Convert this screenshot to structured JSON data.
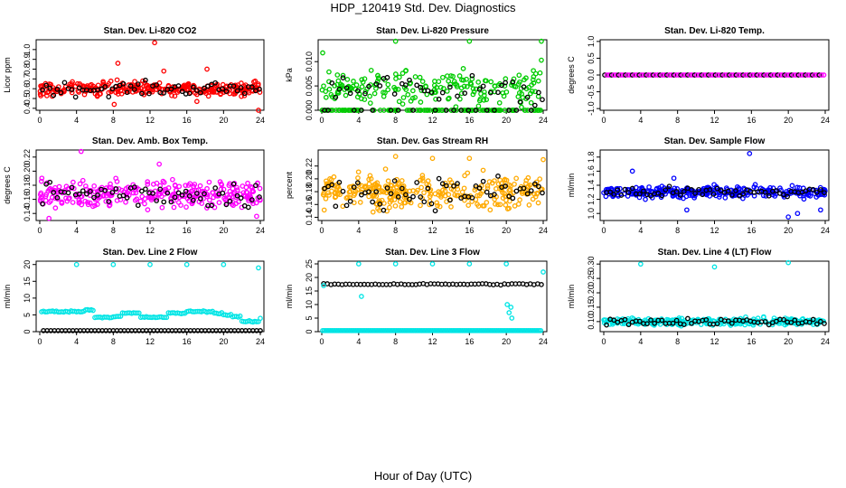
{
  "title": "HDP_120419  Std. Dev. Diagnostics",
  "xlabel": "Hour of Day (UTC)",
  "chart_data": [
    {
      "type": "scatter",
      "title": "Stan. Dev. Li-820 CO2",
      "ylabel": "Licor ppm",
      "color": "#ff0000",
      "ylim": [
        0.38,
        1.1
      ],
      "yticks": [
        "0.4",
        "0.5",
        "0.6",
        "0.7",
        "0.8",
        "0.9",
        "1.0"
      ],
      "ytick_values": [
        0.4,
        0.5,
        0.6,
        0.7,
        0.8,
        0.9,
        1.0
      ],
      "xticks": [
        "0",
        "4",
        "8",
        "12",
        "16",
        "20",
        "24"
      ],
      "xlim": [
        0,
        24
      ],
      "base": 0.6,
      "spread": 0.07,
      "outliers": [
        [
          12.5,
          1.07
        ],
        [
          8.5,
          0.86
        ],
        [
          13.5,
          0.78
        ],
        [
          18.2,
          0.8
        ],
        [
          8.1,
          0.44
        ],
        [
          23.8,
          0.38
        ],
        [
          17.1,
          0.47
        ]
      ]
    },
    {
      "type": "scatter",
      "title": "Stan. Dev. Li-820 Pressure",
      "ylabel": "kPa",
      "color": "#00cc00",
      "ylim": [
        0,
        0.0145
      ],
      "yticks": [
        "0.000",
        "0.005",
        "0.010"
      ],
      "ytick_values": [
        0,
        0.005,
        0.01
      ],
      "xticks": [
        "0",
        "4",
        "8",
        "12",
        "16",
        "20",
        "24"
      ],
      "xlim": [
        0,
        24
      ],
      "base": 0.0045,
      "spread": 0.0035,
      "zero_band": true,
      "outliers": [
        [
          8,
          0.0142
        ],
        [
          16,
          0.0142
        ],
        [
          23.8,
          0.0142
        ],
        [
          0.1,
          0.0118
        ],
        [
          23.8,
          0.0103
        ]
      ]
    },
    {
      "type": "scatter",
      "title": "Stan. Dev. Li-820 Temp.",
      "ylabel": "degrees C",
      "color": "#ff00ff",
      "ylim": [
        -1.05,
        1.05
      ],
      "yticks": [
        "-1.0",
        "-0.5",
        "0.0",
        "0.5",
        "1.0"
      ],
      "ytick_values": [
        -1,
        -0.5,
        0,
        0.5,
        1
      ],
      "xticks": [
        "0",
        "4",
        "8",
        "12",
        "16",
        "20",
        "24"
      ],
      "xlim": [
        0,
        24
      ],
      "flat": 0.0
    },
    {
      "type": "scatter",
      "title": "Stan. Dev. Amb. Box Temp.",
      "ylabel": "degrees C",
      "color": "#ff00ff",
      "ylim": [
        0.13,
        0.23
      ],
      "yticks": [
        "0.14",
        "0.16",
        "0.18",
        "0.20",
        "0.22"
      ],
      "ytick_values": [
        0.14,
        0.16,
        0.18,
        0.2,
        0.22
      ],
      "xticks": [
        "0",
        "4",
        "8",
        "12",
        "16",
        "20",
        "24"
      ],
      "xlim": [
        0,
        24
      ],
      "base": 0.168,
      "spread": 0.02,
      "outliers": [
        [
          4.5,
          0.228
        ],
        [
          13,
          0.21
        ],
        [
          1,
          0.133
        ],
        [
          23.6,
          0.136
        ]
      ]
    },
    {
      "type": "scatter",
      "title": "Stan. Dev. Gas Stream RH",
      "ylabel": "percent",
      "color": "#ffaa00",
      "ylim": [
        0.135,
        0.245
      ],
      "yticks": [
        "0.14",
        "0.16",
        "0.18",
        "0.20",
        "0.22"
      ],
      "ytick_values": [
        0.14,
        0.16,
        0.18,
        0.2,
        0.22
      ],
      "xticks": [
        "0",
        "4",
        "8",
        "12",
        "16",
        "20",
        "24"
      ],
      "xlim": [
        0,
        24
      ],
      "base": 0.18,
      "spread": 0.025,
      "outliers": [
        [
          8,
          0.235
        ],
        [
          12,
          0.232
        ],
        [
          16,
          0.232
        ],
        [
          24,
          0.23
        ]
      ]
    },
    {
      "type": "scatter",
      "title": "Stan. Dev. Sample Flow",
      "ylabel": "ml/min",
      "color": "#0000ff",
      "ylim": [
        0.9,
        1.9
      ],
      "yticks": [
        "1.0",
        "1.2",
        "1.4",
        "1.6",
        "1.8"
      ],
      "ytick_values": [
        1.0,
        1.2,
        1.4,
        1.6,
        1.8
      ],
      "xticks": [
        "0",
        "4",
        "8",
        "12",
        "16",
        "20",
        "24"
      ],
      "xlim": [
        0,
        24
      ],
      "base": 1.3,
      "spread": 0.08,
      "outliers": [
        [
          15.8,
          1.85
        ],
        [
          3.1,
          1.6
        ],
        [
          7.6,
          1.5
        ],
        [
          20,
          0.95
        ],
        [
          21,
          1.0
        ],
        [
          9,
          1.05
        ],
        [
          23.5,
          1.05
        ]
      ]
    },
    {
      "type": "scatter",
      "title": "Stan. Dev. Line 2 Flow",
      "ylabel": "ml/min",
      "color": "#00e5e5",
      "ylim": [
        0,
        21
      ],
      "yticks": [
        "0",
        "5",
        "10",
        "15",
        "20"
      ],
      "ytick_values": [
        0,
        5,
        10,
        15,
        20
      ],
      "xticks": [
        "0",
        "4",
        "8",
        "12",
        "16",
        "20",
        "24"
      ],
      "xlim": [
        0,
        24
      ],
      "line_values": [
        6,
        6,
        6,
        6,
        6,
        6.5,
        4.3,
        4.3,
        4.5,
        5.5,
        5.5,
        4.3,
        4.3,
        4.3,
        5.5,
        5.5,
        6,
        6,
        6,
        5.5,
        5,
        4.5,
        3,
        3,
        4
      ],
      "black_level": 0.3,
      "outliers": [
        [
          4,
          20
        ],
        [
          8,
          20
        ],
        [
          12,
          20
        ],
        [
          16,
          20
        ],
        [
          20,
          20
        ],
        [
          23.8,
          19
        ]
      ]
    },
    {
      "type": "scatter",
      "title": "Stan. Dev. Line 3 Flow",
      "ylabel": "ml/min",
      "color": "#00e5e5",
      "ylim": [
        0,
        26
      ],
      "yticks": [
        "0",
        "5",
        "10",
        "15",
        "20",
        "25"
      ],
      "ytick_values": [
        0,
        5,
        10,
        15,
        20,
        25
      ],
      "xticks": [
        "0",
        "4",
        "8",
        "12",
        "16",
        "20",
        "24"
      ],
      "xlim": [
        0,
        24
      ],
      "black_level": 17.5,
      "cyan_level": 0.4,
      "outliers": [
        [
          4,
          25
        ],
        [
          8,
          25
        ],
        [
          12,
          25
        ],
        [
          16,
          25
        ],
        [
          20,
          25
        ],
        [
          24,
          22
        ],
        [
          0.2,
          17
        ],
        [
          4.3,
          13
        ],
        [
          20.1,
          10
        ],
        [
          20.3,
          7
        ],
        [
          20.5,
          9
        ],
        [
          20.6,
          5
        ]
      ]
    },
    {
      "type": "scatter",
      "title": "Stan. Dev. Line 4 (LT) Flow",
      "ylabel": "ml/min",
      "color": "#00e5e5",
      "ylim": [
        0.065,
        0.31
      ],
      "yticks": [
        "0.10",
        "0.15",
        "0.20",
        "0.25",
        "0.30"
      ],
      "ytick_values": [
        0.1,
        0.15,
        0.2,
        0.25,
        0.3
      ],
      "xticks": [
        "0",
        "4",
        "8",
        "12",
        "16",
        "20",
        "24"
      ],
      "xlim": [
        0,
        24
      ],
      "base": 0.1,
      "spread": 0.012,
      "outliers": [
        [
          4,
          0.3
        ],
        [
          12,
          0.29
        ],
        [
          20,
          0.305
        ]
      ]
    }
  ]
}
